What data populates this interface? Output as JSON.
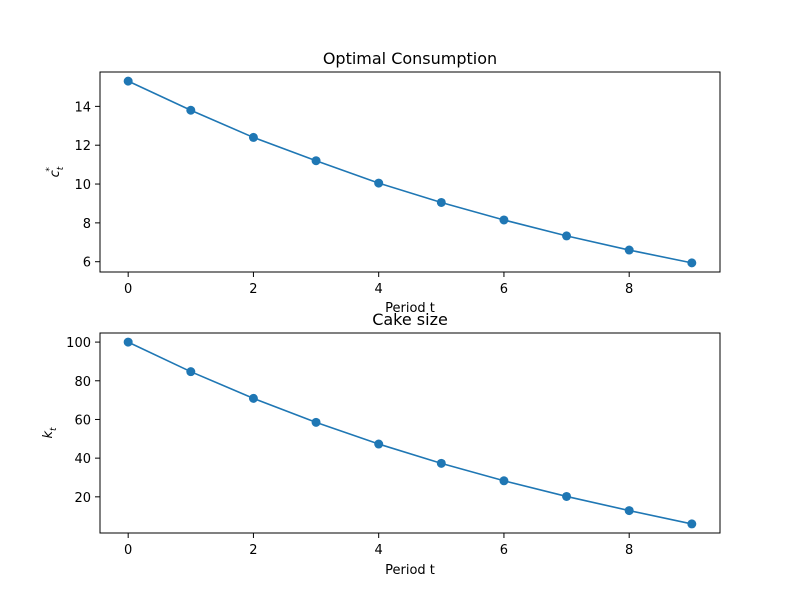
{
  "chart_data": [
    {
      "type": "line",
      "title": "Optimal Consumption",
      "xlabel": "Period t",
      "ylabel_base": "c",
      "ylabel_sub": "t",
      "ylabel_sup": "*",
      "x": [
        0,
        1,
        2,
        3,
        4,
        5,
        6,
        7,
        8,
        9
      ],
      "series": [
        {
          "values": [
            15.3,
            13.8,
            12.4,
            11.2,
            10.05,
            9.05,
            8.15,
            7.33,
            6.6,
            5.94
          ]
        }
      ],
      "xlim": [
        -0.45,
        9.45
      ],
      "ylim": [
        5.47,
        15.77
      ],
      "xticks": [
        0,
        2,
        4,
        6,
        8
      ],
      "yticks": [
        6,
        8,
        10,
        12,
        14
      ],
      "grid": false,
      "color": "#1f77b4"
    },
    {
      "type": "line",
      "title": "Cake size",
      "xlabel": "Period t",
      "ylabel_base": "k",
      "ylabel_sub": "t",
      "ylabel_sup": "",
      "x": [
        0,
        1,
        2,
        3,
        4,
        5,
        6,
        7,
        8,
        9
      ],
      "series": [
        {
          "values": [
            100,
            84.7,
            70.9,
            58.5,
            47.3,
            37.3,
            28.3,
            20.2,
            12.9,
            6.0
          ]
        }
      ],
      "xlim": [
        -0.45,
        9.45
      ],
      "ylim": [
        1.3,
        104.7
      ],
      "xticks": [
        0,
        2,
        4,
        6,
        8
      ],
      "yticks": [
        20,
        40,
        60,
        80,
        100
      ],
      "grid": false,
      "color": "#1f77b4"
    }
  ]
}
